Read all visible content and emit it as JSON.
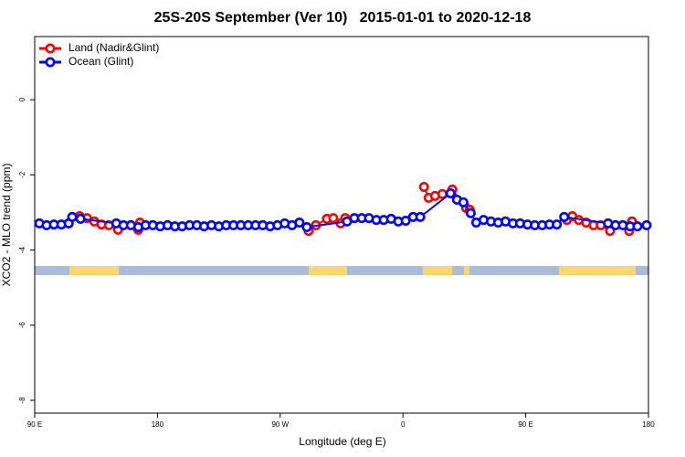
{
  "chart_data": {
    "type": "line",
    "title": "25S-20S September (Ver 10)   2015-01-01 to 2020-12-18",
    "x_label": "Longitude (deg E)",
    "y_label": "XCO2 - MLO trend (ppm)",
    "xlim": [
      90,
      540
    ],
    "xticks": [
      {
        "value": 90,
        "label": "90 E"
      },
      {
        "value": 180,
        "label": "180"
      },
      {
        "value": 270,
        "label": "90 W"
      },
      {
        "value": 360,
        "label": "0"
      },
      {
        "value": 450,
        "label": "90 E"
      },
      {
        "value": 540,
        "label": "180"
      }
    ],
    "ylim": [
      -8.34,
      1.68
    ],
    "yticks": [
      0,
      -2,
      -4,
      -6,
      -8
    ],
    "legend": "topleft",
    "series": [
      {
        "name": "Land (Nadir&Glint)",
        "color": "#ff0000",
        "x": [
          114.9,
          122.9,
          128.3,
          133.7,
          139.0,
          144.4,
          151.1,
          null,
          165.9,
          167.2,
          null,
          290.8,
          296.2,
          304.2,
          308.9,
          314.3,
          317.7,
          null,
          375.4,
          378.8,
          383.5,
          388.9,
          396.2,
          406.3,
          409.0,
          null,
          480.2,
          484.2,
          488.9,
          494.3,
          499.7,
          505.0,
          511.8,
          null,
          525.9,
          527.9
        ],
        "values": [
          -3.29,
          -3.1,
          -3.15,
          -3.24,
          -3.32,
          -3.34,
          -3.46,
          null,
          -3.46,
          -3.27,
          null,
          -3.49,
          -3.34,
          -3.17,
          -3.15,
          -3.29,
          -3.15,
          null,
          -2.32,
          -2.61,
          -2.56,
          -2.51,
          -2.39,
          -2.88,
          -2.93,
          null,
          -3.2,
          -3.1,
          -3.2,
          -3.27,
          -3.34,
          -3.34,
          -3.49,
          null,
          -3.49,
          -3.24
        ]
      },
      {
        "name": "Ocean (Glint)",
        "color": "#0000ff",
        "x": [
          93.4,
          98.7,
          104.1,
          109.5,
          114.9,
          117.5,
          123.6,
          149.8,
          155.1,
          160.5,
          165.9,
          171.3,
          176.6,
          182.0,
          187.4,
          192.8,
          198.1,
          203.5,
          208.9,
          214.2,
          219.6,
          225.0,
          230.4,
          235.7,
          241.1,
          246.5,
          251.9,
          257.2,
          262.6,
          268.0,
          273.3,
          278.7,
          284.1,
          289.5,
          319.0,
          324.4,
          329.8,
          335.1,
          340.5,
          345.9,
          351.3,
          356.6,
          362.0,
          367.4,
          372.7,
          394.9,
          399.6,
          404.3,
          409.7,
          413.7,
          419.1,
          424.5,
          429.8,
          435.2,
          440.6,
          445.9,
          451.3,
          456.7,
          462.1,
          467.4,
          472.8,
          478.2,
          510.4,
          515.8,
          521.2,
          526.6,
          531.9,
          538.6
        ],
        "values": [
          -3.29,
          -3.34,
          -3.32,
          -3.32,
          -3.29,
          -3.12,
          -3.17,
          -3.29,
          -3.34,
          -3.34,
          -3.39,
          -3.34,
          -3.34,
          -3.37,
          -3.34,
          -3.37,
          -3.37,
          -3.34,
          -3.34,
          -3.37,
          -3.34,
          -3.37,
          -3.34,
          -3.34,
          -3.34,
          -3.34,
          -3.34,
          -3.34,
          -3.37,
          -3.34,
          -3.29,
          -3.34,
          -3.27,
          -3.39,
          -3.24,
          -3.15,
          -3.15,
          -3.15,
          -3.2,
          -3.2,
          -3.17,
          -3.24,
          -3.22,
          -3.12,
          -3.12,
          -2.49,
          -2.66,
          -2.73,
          -3.02,
          -3.27,
          -3.2,
          -3.24,
          -3.27,
          -3.24,
          -3.29,
          -3.29,
          -3.32,
          -3.34,
          -3.34,
          -3.32,
          -3.32,
          -3.12,
          -3.29,
          -3.34,
          -3.34,
          -3.37,
          -3.37,
          -3.34
        ]
      }
    ]
  }
}
